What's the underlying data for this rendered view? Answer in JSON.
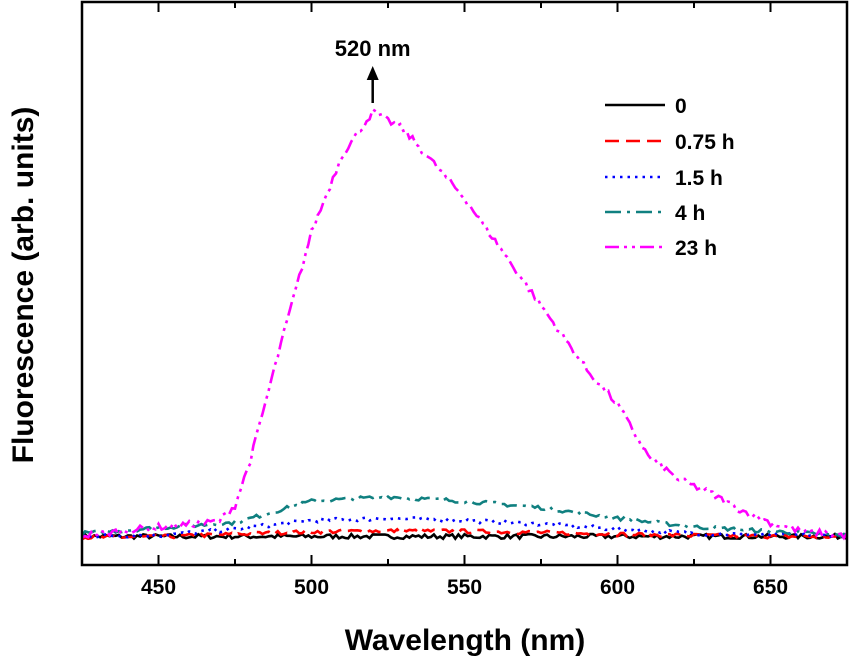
{
  "chart_data": {
    "type": "line",
    "xlabel": "Wavelength (nm)",
    "ylabel": "Fluorescence (arb. units)",
    "xlim": [
      425,
      675
    ],
    "ylim": [
      0,
      100
    ],
    "x_ticks": [
      450,
      500,
      550,
      600,
      650
    ],
    "y_ticks_shown": false,
    "grid": false,
    "legend_position": "top-right",
    "annotation": {
      "text": "520 nm",
      "x": 520
    },
    "series": [
      {
        "name": "0",
        "color": "#000000",
        "dash": "solid",
        "x": [
          425,
          450,
          475,
          500,
          525,
          550,
          575,
          600,
          625,
          650,
          675
        ],
        "y": [
          1.3,
          1.3,
          1.3,
          1.3,
          1.3,
          1.3,
          1.3,
          1.3,
          1.3,
          1.3,
          1.3
        ]
      },
      {
        "name": "0.75 h",
        "color": "#ff0000",
        "dash": "dash",
        "x": [
          425,
          450,
          475,
          500,
          525,
          550,
          575,
          600,
          625,
          650,
          675
        ],
        "y": [
          1.1,
          1.2,
          1.8,
          2.4,
          2.6,
          2.5,
          2.2,
          1.8,
          1.5,
          1.3,
          1.2
        ]
      },
      {
        "name": "1.5 h",
        "color": "#0000ff",
        "dash": "dot",
        "x": [
          425,
          450,
          475,
          500,
          525,
          550,
          575,
          600,
          625,
          650,
          675
        ],
        "y": [
          1.5,
          1.5,
          3.0,
          5.0,
          5.5,
          5.0,
          4.2,
          3.0,
          2.0,
          1.6,
          1.5
        ]
      },
      {
        "name": "4 h",
        "color": "#108080",
        "dash": "dashdot",
        "x": [
          425,
          450,
          475,
          500,
          525,
          550,
          575,
          600,
          625,
          650,
          675
        ],
        "y": [
          2.0,
          3.3,
          4.5,
          9.5,
          10.5,
          9.5,
          8.0,
          5.5,
          3.5,
          2.5,
          1.5
        ]
      },
      {
        "name": "23 h",
        "color": "#ff00ff",
        "dash": "dashdotdot",
        "x": [
          425,
          450,
          465,
          470,
          475,
          480,
          490,
          500,
          510,
          520,
          530,
          540,
          550,
          560,
          570,
          580,
          590,
          600,
          610,
          620,
          630,
          640,
          650,
          660,
          675
        ],
        "y": [
          1.5,
          3.5,
          4.3,
          5.0,
          8.5,
          19,
          46,
          72,
          90,
          100,
          96,
          88,
          80,
          70,
          60,
          50,
          40,
          32,
          20,
          14.5,
          11.5,
          7.5,
          4.5,
          2.5,
          1.5
        ]
      }
    ]
  }
}
